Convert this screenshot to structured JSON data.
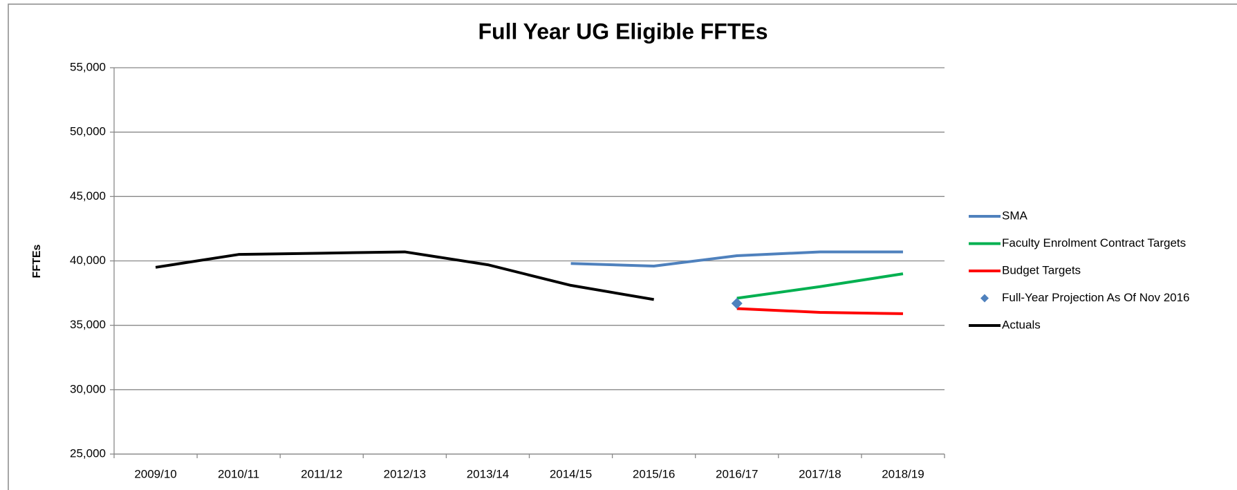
{
  "chart_data": {
    "type": "line",
    "title": "Full Year UG Eligible FFTEs",
    "y_label": "FFTEs",
    "categories": [
      "2009/10",
      "2010/11",
      "2011/12",
      "2012/13",
      "2013/14",
      "2014/15",
      "2015/16",
      "2016/17",
      "2017/18",
      "2018/19"
    ],
    "ylim": [
      25000,
      55000
    ],
    "yticks": [
      {
        "value": 25000,
        "label": "25,000"
      },
      {
        "value": 30000,
        "label": "30,000"
      },
      {
        "value": 35000,
        "label": "35,000"
      },
      {
        "value": 40000,
        "label": "40,000"
      },
      {
        "value": 45000,
        "label": "45,000"
      },
      {
        "value": 50000,
        "label": "50,000"
      },
      {
        "value": 55000,
        "label": "55,000"
      }
    ],
    "grid": true,
    "legend": "right",
    "series": [
      {
        "name": "SMA",
        "color": "#4f81bd",
        "values": [
          null,
          null,
          null,
          null,
          null,
          39800,
          39600,
          40400,
          40700,
          40700
        ]
      },
      {
        "name": "Faculty Enrolment Contract Targets",
        "color": "#00b050",
        "values": [
          null,
          null,
          null,
          null,
          null,
          null,
          null,
          37100,
          38000,
          39000
        ]
      },
      {
        "name": "Budget Targets",
        "color": "#ff0000",
        "values": [
          null,
          null,
          null,
          null,
          null,
          null,
          null,
          36300,
          36000,
          35900
        ]
      },
      {
        "name": "Full-Year Projection As Of Nov 2016",
        "color": "#4f81bd",
        "marker": "diamond",
        "values": [
          null,
          null,
          null,
          null,
          null,
          null,
          null,
          36700,
          null,
          null
        ]
      },
      {
        "name": "Actuals",
        "color": "#000000",
        "values": [
          39500,
          40500,
          40600,
          40700,
          39700,
          38100,
          37000,
          null,
          null,
          null
        ]
      }
    ]
  }
}
